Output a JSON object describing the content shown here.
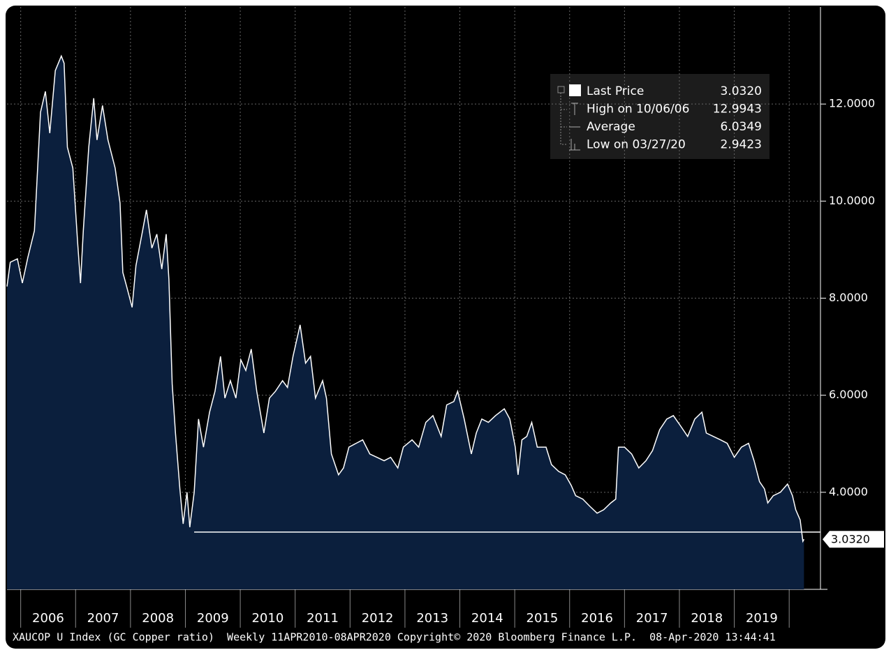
{
  "chart_data": {
    "type": "area",
    "footer": "XAUCOP U Index (GC Copper ratio)  Weekly 11APR2010-08APR2020 Copyright© 2020 Bloomberg Finance L.P.  08-Apr-2020 13:44:41",
    "xlim": [
      2005.75,
      2020.57
    ],
    "ylim": [
      2,
      14
    ],
    "xticks": [
      2006,
      2007,
      2008,
      2009,
      2010,
      2011,
      2012,
      2013,
      2014,
      2015,
      2016,
      2017,
      2018,
      2019,
      {
        "value": 2020,
        "label": null
      }
    ],
    "yticks": [
      {
        "value": 4,
        "label": "4.0000"
      },
      {
        "value": 6,
        "label": "6.0000"
      },
      {
        "value": 8,
        "label": "8.0000"
      },
      {
        "value": 10,
        "label": "10.0000"
      },
      {
        "value": 12,
        "label": "12.0000"
      }
    ],
    "grid": true,
    "series": [
      {
        "name": "Last Price",
        "color": "#ffffff",
        "fill": "#0b1f3d",
        "x": [
          2005.75,
          2005.81,
          2005.94,
          2006.03,
          2006.13,
          2006.25,
          2006.36,
          2006.45,
          2006.53,
          2006.63,
          2006.74,
          2006.79,
          2006.85,
          2006.95,
          2007.04,
          2007.09,
          2007.14,
          2007.24,
          2007.33,
          2007.39,
          2007.49,
          2007.59,
          2007.72,
          2007.81,
          2007.86,
          2007.93,
          2008.03,
          2008.1,
          2008.22,
          2008.29,
          2008.39,
          2008.48,
          2008.57,
          2008.65,
          2008.7,
          2008.76,
          2008.82,
          2008.9,
          2008.96,
          2009.03,
          2009.08,
          2009.16,
          2009.24,
          2009.33,
          2009.44,
          2009.54,
          2009.64,
          2009.72,
          2009.82,
          2009.92,
          2010.01,
          2010.1,
          2010.2,
          2010.3,
          2010.43,
          2010.53,
          2010.64,
          2010.77,
          2010.86,
          2010.96,
          2011.09,
          2011.19,
          2011.28,
          2011.37,
          2011.5,
          2011.57,
          2011.66,
          2011.79,
          2011.88,
          2011.98,
          2012.11,
          2012.23,
          2012.36,
          2012.49,
          2012.62,
          2012.74,
          2012.87,
          2012.97,
          2013.13,
          2013.25,
          2013.38,
          2013.51,
          2013.66,
          2013.76,
          2013.89,
          2013.96,
          2014.08,
          2014.21,
          2014.3,
          2014.4,
          2014.52,
          2014.65,
          2014.81,
          2014.91,
          2015.01,
          2015.06,
          2015.13,
          2015.22,
          2015.31,
          2015.41,
          2015.57,
          2015.67,
          2015.8,
          2015.92,
          2016.03,
          2016.11,
          2016.24,
          2016.37,
          2016.5,
          2016.62,
          2016.75,
          2016.84,
          2016.89,
          2017.0,
          2017.13,
          2017.26,
          2017.39,
          2017.51,
          2017.64,
          2017.77,
          2017.89,
          2018.02,
          2018.15,
          2018.28,
          2018.41,
          2018.49,
          2018.62,
          2018.75,
          2018.87,
          2019.0,
          2019.13,
          2019.26,
          2019.36,
          2019.46,
          2019.55,
          2019.61,
          2019.71,
          2019.84,
          2019.97,
          2020.06,
          2020.12,
          2020.2,
          2020.25,
          2020.27
        ],
        "values": [
          8.24,
          8.74,
          8.81,
          8.31,
          8.84,
          9.39,
          11.83,
          12.26,
          11.4,
          12.69,
          12.99,
          12.84,
          11.11,
          10.68,
          9.1,
          8.31,
          9.39,
          11.11,
          12.12,
          11.26,
          11.97,
          11.26,
          10.68,
          9.96,
          8.53,
          8.24,
          7.81,
          8.67,
          9.39,
          9.82,
          9.03,
          9.32,
          8.6,
          9.32,
          8.38,
          6.23,
          5.22,
          4.07,
          3.35,
          4.0,
          3.28,
          4.0,
          5.51,
          4.93,
          5.65,
          6.08,
          6.8,
          5.94,
          6.3,
          5.94,
          6.73,
          6.51,
          6.95,
          6.08,
          5.22,
          5.94,
          6.08,
          6.3,
          6.16,
          6.8,
          7.45,
          6.66,
          6.8,
          5.94,
          6.3,
          5.94,
          4.79,
          4.36,
          4.5,
          4.93,
          5.01,
          5.08,
          4.79,
          4.72,
          4.65,
          4.72,
          4.5,
          4.93,
          5.08,
          4.93,
          5.44,
          5.58,
          5.15,
          5.8,
          5.87,
          6.08,
          5.51,
          4.79,
          5.22,
          5.51,
          5.44,
          5.58,
          5.72,
          5.51,
          4.93,
          4.36,
          5.08,
          5.15,
          5.44,
          4.93,
          4.93,
          4.57,
          4.43,
          4.36,
          4.14,
          3.93,
          3.86,
          3.71,
          3.57,
          3.64,
          3.78,
          3.86,
          4.93,
          4.93,
          4.79,
          4.5,
          4.65,
          4.86,
          5.29,
          5.51,
          5.58,
          5.37,
          5.15,
          5.51,
          5.65,
          5.22,
          5.15,
          5.08,
          5.01,
          4.72,
          4.93,
          5.01,
          4.65,
          4.22,
          4.07,
          3.78,
          3.93,
          4.0,
          4.17,
          3.93,
          3.64,
          3.43,
          2.99,
          3.03
        ]
      }
    ],
    "reference_line": {
      "y": 3.18,
      "x": [
        2009.16,
        2020.57
      ]
    },
    "stats": [
      {
        "label": "Last Price",
        "value": 3.032,
        "value_label": "3.0320"
      },
      {
        "label": "High on 10/06/06",
        "value": 12.9943,
        "value_label": "12.9943"
      },
      {
        "label": "Average",
        "value": 6.0349,
        "value_label": "6.0349"
      },
      {
        "label": "Low on 03/27/20",
        "value": 2.9423,
        "value_label": "2.9423"
      }
    ]
  }
}
